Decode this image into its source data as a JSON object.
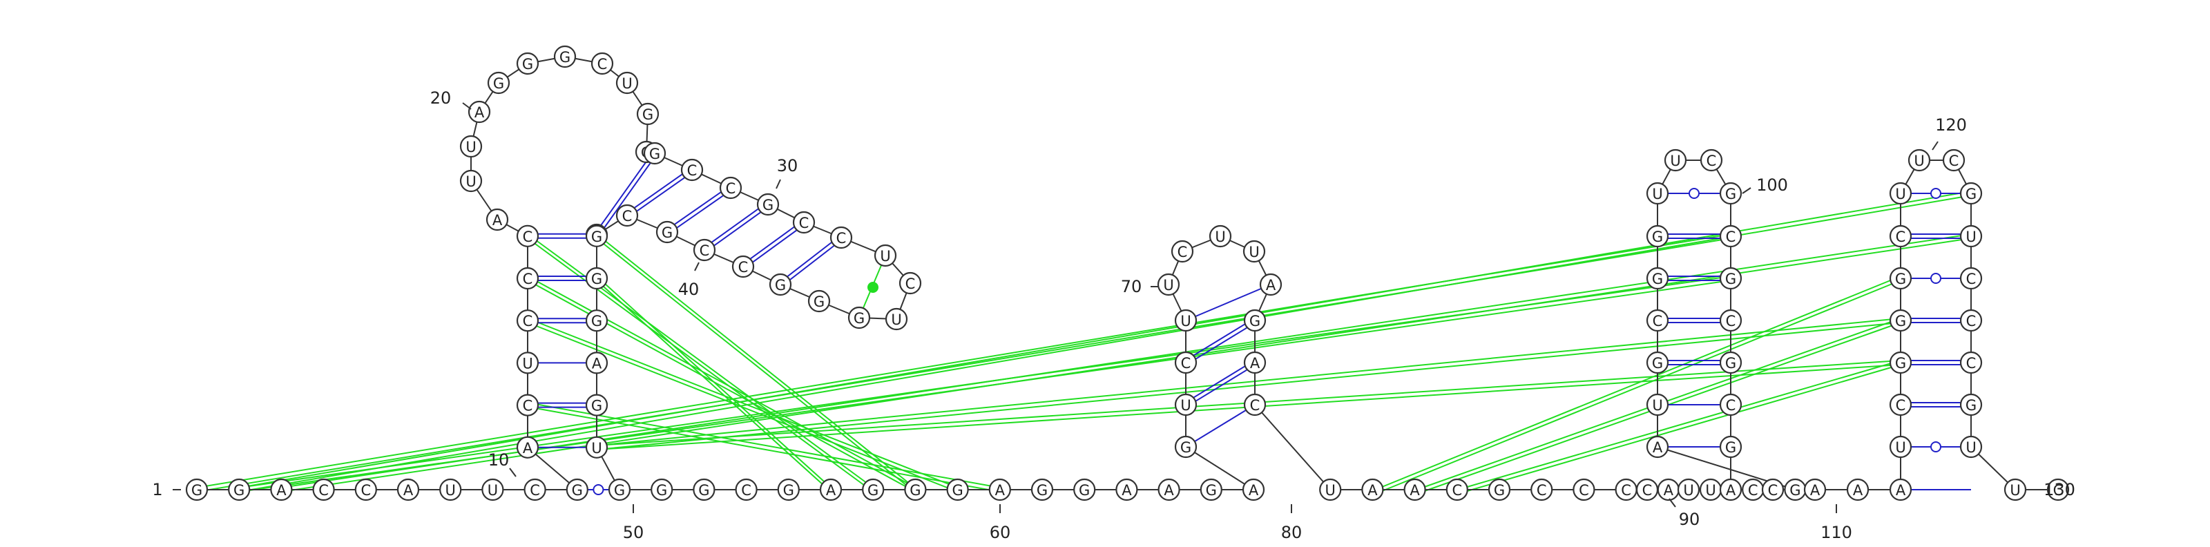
{
  "colors": {
    "canonical_pair": "#2020c8",
    "tertiary_interaction": "#22dd22",
    "nucleotide_outline": "#333333",
    "background": "#ffffff"
  },
  "number_labels": [
    "1",
    "10",
    "20",
    "30",
    "40",
    "50",
    "60",
    "70",
    "80",
    "90",
    "100",
    "110",
    "120",
    "130"
  ],
  "strands": [
    {
      "segment": "main-baseline-5prime",
      "sequence": [
        "G",
        "G",
        "A",
        "C",
        "C",
        "A",
        "U",
        "U",
        "C",
        "G"
      ]
    },
    {
      "segment": "stem1-left",
      "sequence": [
        "A",
        "C",
        "U",
        "C",
        "C",
        "C"
      ]
    },
    {
      "segment": "loop1",
      "sequence": [
        "A",
        "U",
        "U",
        "A",
        "G",
        "G",
        "G",
        "C",
        "U",
        "G",
        "G"
      ]
    },
    {
      "segment": "hairpin2",
      "sequence": [
        "G",
        "C",
        "C",
        "G",
        "C",
        "C",
        "U",
        "C",
        "U",
        "G",
        "G",
        "G",
        "C",
        "C",
        "G",
        "C",
        "G"
      ]
    },
    {
      "segment": "stem1-right",
      "sequence": [
        "G",
        "G",
        "G",
        "A",
        "G",
        "U"
      ]
    },
    {
      "segment": "baseline-mid",
      "sequence": [
        "G",
        "G",
        "G",
        "C",
        "G",
        "A",
        "G",
        "G",
        "G",
        "A",
        "G",
        "G",
        "A",
        "A",
        "G",
        "A"
      ]
    },
    {
      "segment": "hairpin3",
      "sequence": [
        "G",
        "U",
        "C",
        "U",
        "U",
        "C",
        "U",
        "U",
        "A",
        "G",
        "A",
        "C"
      ]
    },
    {
      "segment": "baseline-mid2",
      "sequence": [
        "U",
        "A",
        "A",
        "C",
        "G",
        "C",
        "C",
        "C",
        "A",
        "U",
        "C",
        "G"
      ]
    },
    {
      "segment": "hairpin4",
      "sequence": [
        "A",
        "U",
        "G",
        "C",
        "G",
        "G",
        "U",
        "U",
        "C",
        "G",
        "C",
        "G",
        "C",
        "G",
        "C",
        "G",
        "A",
        "U",
        "C"
      ]
    },
    {
      "segment": "baseline-mid3",
      "sequence": [
        "C",
        "A",
        "A",
        "A"
      ]
    },
    {
      "segment": "hairpin5",
      "sequence": [
        "U",
        "C",
        "G",
        "G",
        "G",
        "C",
        "U",
        "U",
        "C",
        "G",
        "U",
        "C",
        "C",
        "C",
        "G",
        "U"
      ]
    },
    {
      "segment": "baseline-3prime",
      "sequence": [
        "U",
        "C"
      ]
    }
  ]
}
